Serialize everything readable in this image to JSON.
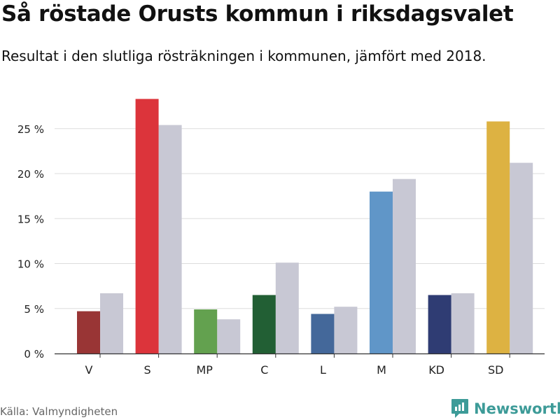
{
  "title": "Så röstade Orusts kommun i riksdagsvalet",
  "subtitle": "Resultat i den slutliga rösträkningen i kommunen, jämfört med 2018.",
  "source": "Källa: Valmyndigheten",
  "brand": "Newsworthy",
  "brand_icon": "newsworthy-logo-icon",
  "colors": {
    "previous": "#c8c8d4",
    "grid": "#dddddd",
    "axis": "#333333",
    "brand": "#3d9b98"
  },
  "chart_data": {
    "type": "bar",
    "categories": [
      "V",
      "S",
      "MP",
      "C",
      "L",
      "M",
      "KD",
      "SD"
    ],
    "series": [
      {
        "values": [
          4.7,
          28.3,
          4.9,
          6.5,
          4.4,
          18.0,
          6.5,
          25.8
        ],
        "colors": [
          "#993535",
          "#dc343b",
          "#63a14f",
          "#225f34",
          "#44689a",
          "#6096c8",
          "#2f3c73",
          "#ddb242"
        ]
      },
      {
        "values": [
          6.7,
          25.4,
          3.8,
          10.1,
          5.2,
          19.4,
          6.7,
          21.2
        ],
        "colors": [
          "#c8c8d4",
          "#c8c8d4",
          "#c8c8d4",
          "#c8c8d4",
          "#c8c8d4",
          "#c8c8d4",
          "#c8c8d4",
          "#c8c8d4"
        ]
      }
    ],
    "yticks": [
      0,
      5,
      10,
      15,
      20,
      25
    ],
    "ytick_labels": [
      "0 %",
      "5 %",
      "10 %",
      "15 %",
      "20 %",
      "25 %"
    ],
    "ylim": [
      0,
      30
    ],
    "grid": true
  }
}
